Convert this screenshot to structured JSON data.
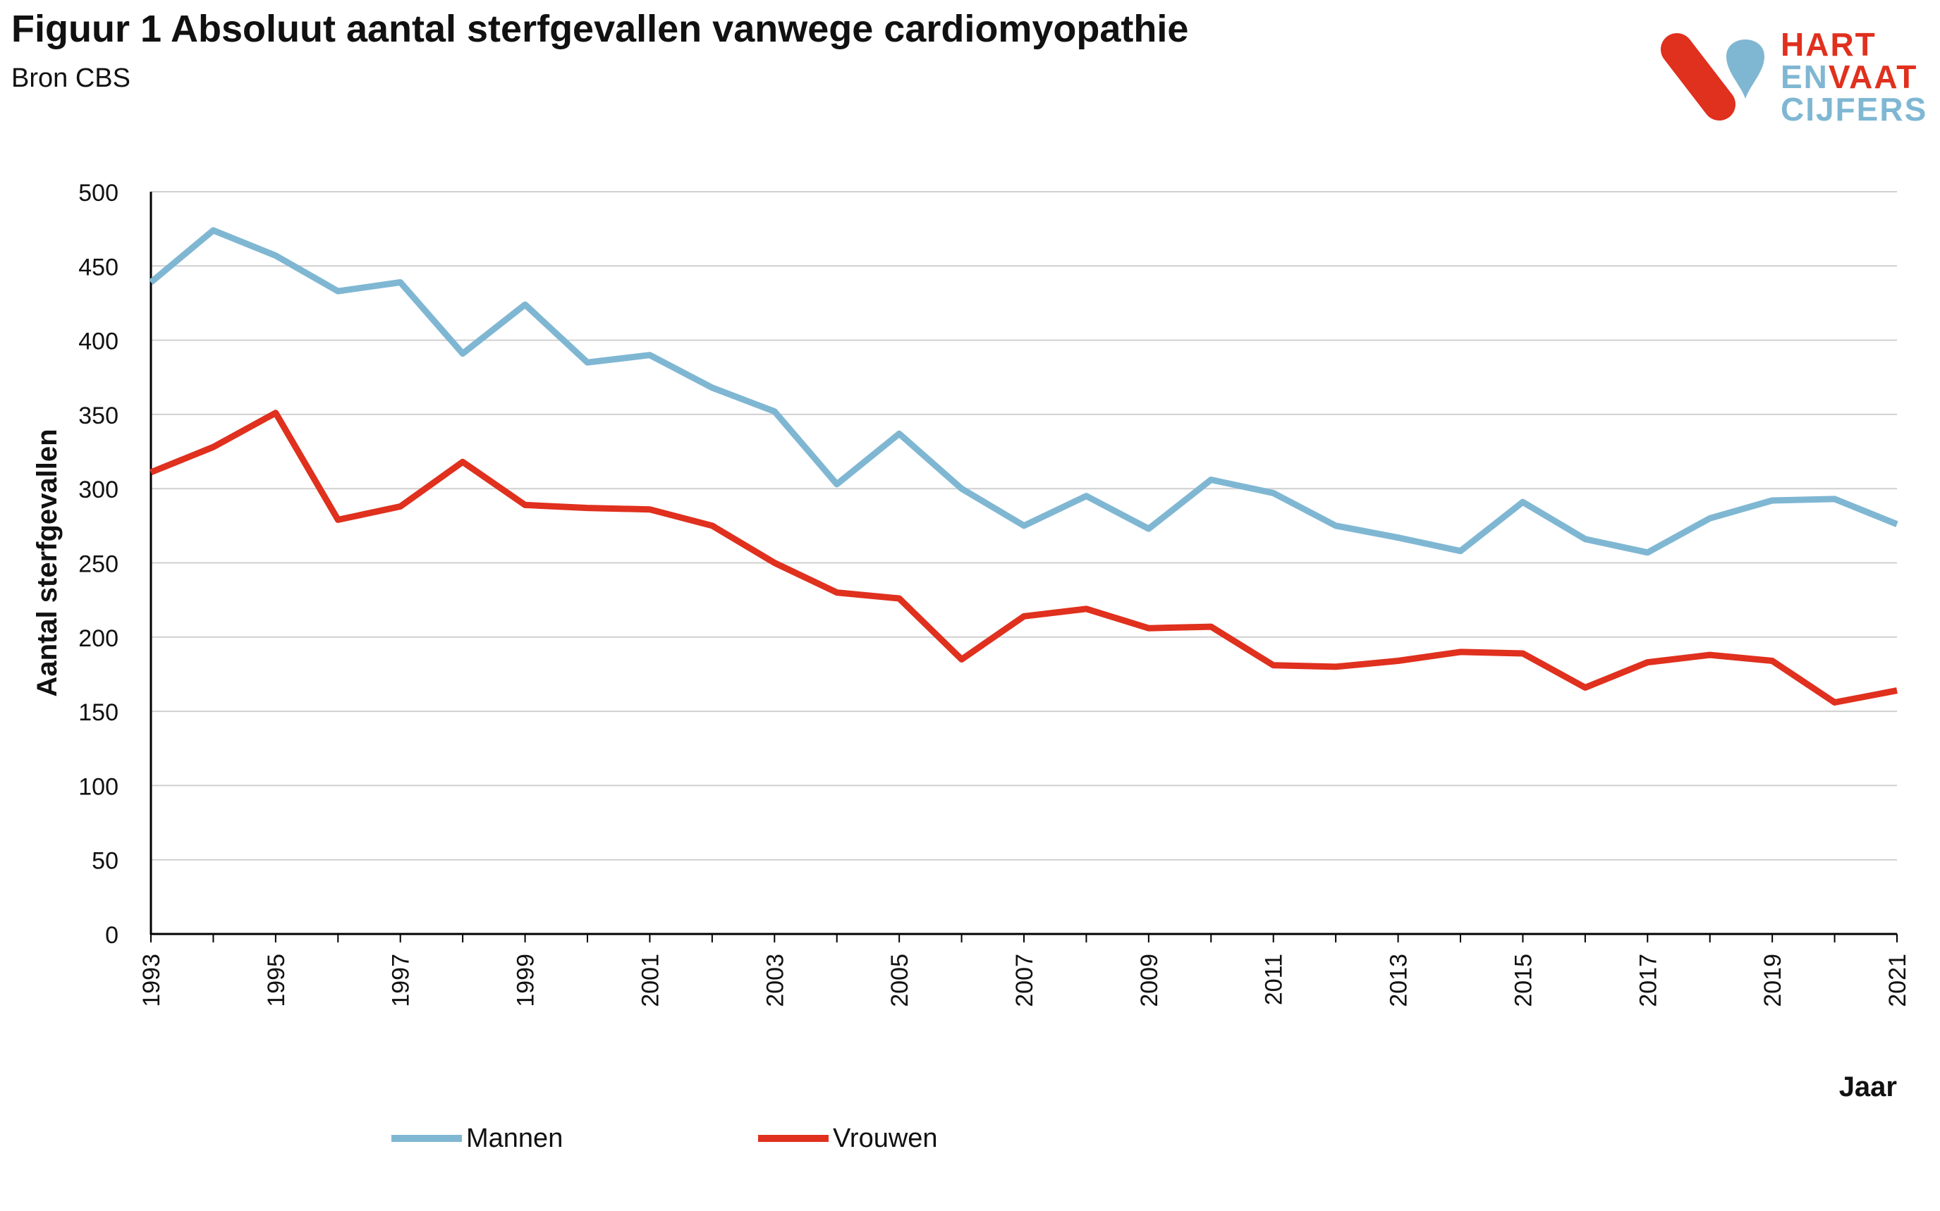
{
  "header": {
    "title": "Figuur 1 Absoluut aantal sterfgevallen vanwege cardiomyopathie",
    "subtitle": "Bron CBS"
  },
  "logo": {
    "line1": "HART",
    "line2a": "EN",
    "line2b": "VAAT",
    "line3": "CIJFERS"
  },
  "colors": {
    "mannen": "#7fb7d3",
    "vrouwen": "#e0301e",
    "grid": "#d0d0d0",
    "axis": "#000000"
  },
  "legend": {
    "mannen": "Mannen",
    "vrouwen": "Vrouwen"
  },
  "chart_data": {
    "type": "line",
    "title": "Figuur 1 Absoluut aantal sterfgevallen vanwege cardiomyopathie",
    "xlabel": "Jaar",
    "ylabel": "Aantal sterfgevallen",
    "ylim": [
      0,
      500
    ],
    "yticks": [
      0,
      50,
      100,
      150,
      200,
      250,
      300,
      350,
      400,
      450,
      500
    ],
    "grid": true,
    "legend_position": "bottom",
    "x": [
      1993,
      1994,
      1995,
      1996,
      1997,
      1998,
      1999,
      2000,
      2001,
      2002,
      2003,
      2004,
      2005,
      2006,
      2007,
      2008,
      2009,
      2010,
      2011,
      2012,
      2013,
      2014,
      2015,
      2016,
      2017,
      2018,
      2019,
      2020,
      2021
    ],
    "xtick_labels": [
      "1993",
      "1995",
      "1997",
      "1999",
      "2001",
      "2003",
      "2005",
      "2007",
      "2009",
      "2011",
      "2013",
      "2015",
      "2017",
      "2019",
      "2021"
    ],
    "series": [
      {
        "name": "Mannen",
        "values": [
          439,
          474,
          457,
          433,
          439,
          391,
          424,
          385,
          390,
          368,
          352,
          303,
          337,
          300,
          275,
          295,
          273,
          306,
          297,
          275,
          267,
          258,
          291,
          266,
          257,
          280,
          292,
          293,
          276
        ]
      },
      {
        "name": "Vrouwen",
        "values": [
          311,
          328,
          351,
          279,
          288,
          318,
          289,
          287,
          286,
          275,
          250,
          230,
          226,
          185,
          214,
          219,
          206,
          207,
          181,
          180,
          184,
          190,
          189,
          166,
          183,
          188,
          184,
          156,
          164
        ]
      }
    ]
  }
}
